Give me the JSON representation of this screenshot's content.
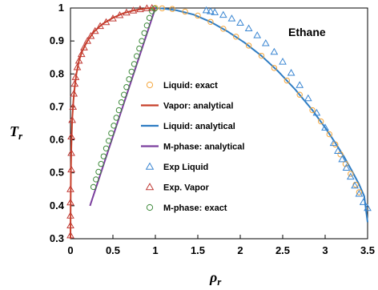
{
  "chart_data": {
    "type": "scatter",
    "annotation": "Ethane",
    "xlabel_main": "ρ",
    "xlabel_sub": "r",
    "ylabel_main": "T",
    "ylabel_sub": "r",
    "xlim": [
      0,
      3.5
    ],
    "ylim": [
      0.3,
      1.0
    ],
    "xticks": [
      "0",
      "0.5",
      "1",
      "1.5",
      "2",
      "2.5",
      "3",
      "3.5"
    ],
    "xtick_values": [
      0,
      0.5,
      1,
      1.5,
      2,
      2.5,
      3,
      3.5
    ],
    "yticks": [
      "0.3",
      "0.4",
      "0.5",
      "0.6",
      "0.7",
      "0.8",
      "0.9",
      "1"
    ],
    "ytick_values": [
      0.3,
      0.4,
      0.5,
      0.6,
      0.7,
      0.8,
      0.9,
      1.0
    ],
    "grid": false,
    "legend_position": "center",
    "series": [
      {
        "name": "Liquid: exact",
        "kind": "marker",
        "marker": "circle",
        "color": "#F4A53A",
        "x": [
          1.0,
          1.08,
          1.2,
          1.35,
          1.5,
          1.65,
          1.8,
          1.95,
          2.1,
          2.25,
          2.4,
          2.55,
          2.7,
          2.85,
          2.95,
          3.05,
          3.12,
          3.18,
          3.24,
          3.3,
          3.36,
          3.4
        ],
        "y": [
          1.0,
          0.999,
          0.997,
          0.989,
          0.977,
          0.958,
          0.937,
          0.913,
          0.886,
          0.855,
          0.818,
          0.78,
          0.737,
          0.69,
          0.656,
          0.617,
          0.586,
          0.556,
          0.527,
          0.497,
          0.464,
          0.441
        ]
      },
      {
        "name": "Vapor: analytical",
        "kind": "line",
        "color": "#C8402A",
        "x": [
          0.0,
          0.002,
          0.005,
          0.01,
          0.02,
          0.035,
          0.05,
          0.07,
          0.1,
          0.14,
          0.2,
          0.28,
          0.38,
          0.5,
          0.62,
          0.75,
          0.87,
          0.95,
          1.0
        ],
        "y": [
          0.3,
          0.4,
          0.5,
          0.58,
          0.66,
          0.72,
          0.76,
          0.8,
          0.84,
          0.87,
          0.9,
          0.929,
          0.952,
          0.97,
          0.984,
          0.993,
          0.998,
          1.0,
          1.0
        ]
      },
      {
        "name": "Liquid: analytical",
        "kind": "line",
        "color": "#2F7DC3",
        "x": [
          1.0,
          1.1,
          1.25,
          1.45,
          1.65,
          1.85,
          2.05,
          2.25,
          2.45,
          2.65,
          2.85,
          3.0,
          3.12,
          3.22,
          3.32,
          3.4,
          3.46,
          3.5
        ],
        "y": [
          1.0,
          0.998,
          0.993,
          0.98,
          0.958,
          0.929,
          0.895,
          0.855,
          0.807,
          0.752,
          0.69,
          0.637,
          0.591,
          0.55,
          0.504,
          0.465,
          0.429,
          0.35
        ]
      },
      {
        "name": "M-phase: analytical",
        "kind": "line",
        "color": "#7B3F9E",
        "x": [
          0.23,
          1.0
        ],
        "y": [
          0.4,
          1.0
        ]
      },
      {
        "name": "Exp Liquid",
        "kind": "marker",
        "marker": "triangle",
        "color": "#3A86D2",
        "x": [
          1.6,
          1.65,
          1.7,
          1.8,
          1.9,
          2.0,
          2.1,
          2.2,
          2.3,
          2.4,
          2.5,
          2.6,
          2.7,
          2.8,
          2.9,
          3.0,
          3.1,
          3.15,
          3.2,
          3.25,
          3.3,
          3.35,
          3.4,
          3.45,
          3.5
        ],
        "y": [
          0.993,
          0.99,
          0.987,
          0.979,
          0.968,
          0.955,
          0.938,
          0.917,
          0.893,
          0.867,
          0.837,
          0.803,
          0.766,
          0.726,
          0.682,
          0.637,
          0.59,
          0.566,
          0.541,
          0.515,
          0.488,
          0.461,
          0.436,
          0.411,
          0.393
        ]
      },
      {
        "name": "Exp. Vapor",
        "kind": "marker",
        "marker": "triangle",
        "color": "#C03A35",
        "x": [
          0.0,
          0.0,
          0.0,
          0.0,
          0.0,
          0.01,
          0.01,
          0.01,
          0.02,
          0.03,
          0.04,
          0.05,
          0.06,
          0.08,
          0.1,
          0.13,
          0.16,
          0.2,
          0.24,
          0.29,
          0.35,
          0.42,
          0.5,
          0.58,
          0.66,
          0.74,
          0.82,
          0.9,
          0.96
        ],
        "y": [
          0.31,
          0.34,
          0.37,
          0.41,
          0.45,
          0.51,
          0.56,
          0.61,
          0.66,
          0.7,
          0.74,
          0.77,
          0.79,
          0.82,
          0.84,
          0.86,
          0.88,
          0.9,
          0.915,
          0.93,
          0.945,
          0.957,
          0.968,
          0.978,
          0.986,
          0.992,
          0.996,
          0.999,
          1.0
        ]
      },
      {
        "name": "M-phase: exact",
        "kind": "marker",
        "marker": "circle",
        "color": "#3E8A3B",
        "x": [
          0.27,
          0.3,
          0.33,
          0.36,
          0.39,
          0.42,
          0.45,
          0.48,
          0.51,
          0.54,
          0.57,
          0.6,
          0.63,
          0.66,
          0.69,
          0.72,
          0.75,
          0.78,
          0.81,
          0.84,
          0.87,
          0.9,
          0.93,
          0.96,
          0.99
        ],
        "y": [
          0.457,
          0.48,
          0.503,
          0.527,
          0.55,
          0.574,
          0.597,
          0.62,
          0.643,
          0.667,
          0.69,
          0.714,
          0.737,
          0.76,
          0.784,
          0.807,
          0.83,
          0.854,
          0.877,
          0.9,
          0.924,
          0.947,
          0.97,
          0.99,
          0.998
        ]
      }
    ]
  }
}
